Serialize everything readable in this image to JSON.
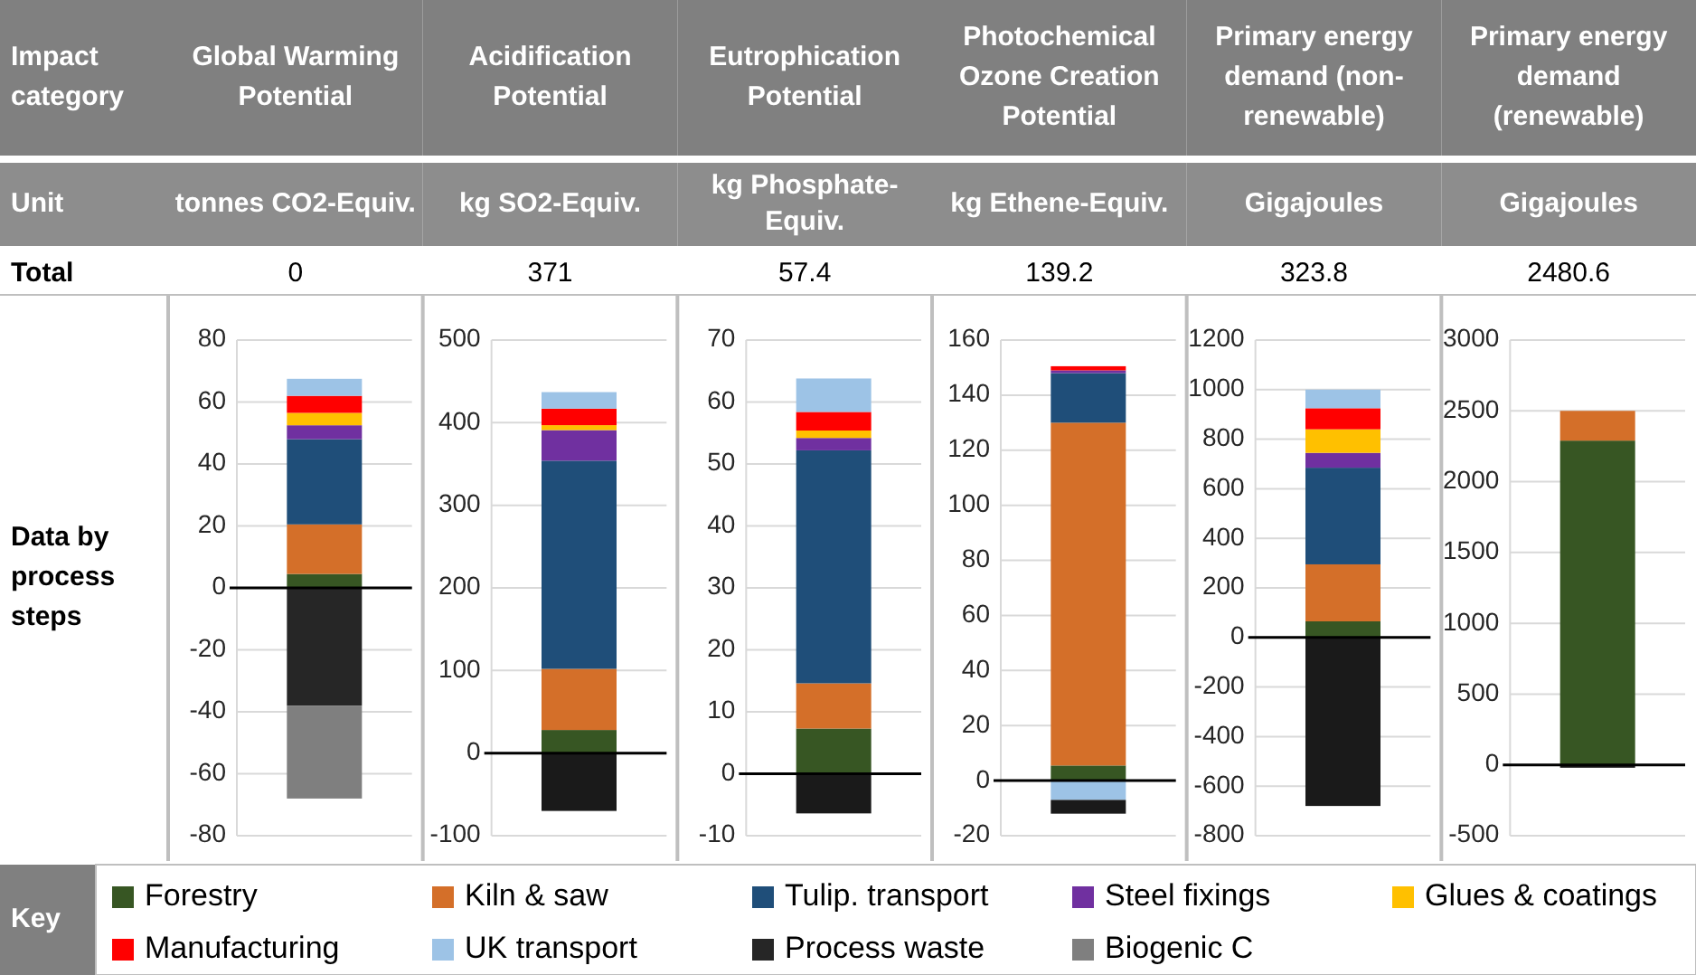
{
  "chart_data": [
    {
      "type": "other",
      "annotations": [
        "Impact category",
        "Unit",
        "Total",
        "Data by process steps",
        "Key"
      ]
    },
    {
      "type": "bar",
      "title": "Global Warming Potential",
      "subtitle": "tonnes CO2-Equiv.",
      "annotations": [
        "0"
      ],
      "stacked": true,
      "categories": [
        null
      ],
      "ylim": [
        -80,
        80
      ],
      "yticks": [
        -80,
        -60,
        -40,
        -20,
        0,
        20,
        40,
        60,
        80
      ],
      "grid": "y",
      "legend": "bottom",
      "series": [
        {
          "name": "Forestry",
          "color": "#375623",
          "values": [
            4.5
          ]
        },
        {
          "name": "Kiln & saw",
          "color": "#d46f29",
          "values": [
            16
          ]
        },
        {
          "name": "Tulip. transport",
          "color": "#1f4e79",
          "values": [
            27.5
          ]
        },
        {
          "name": "Steel fixings",
          "color": "#7030a0",
          "values": [
            4.5
          ]
        },
        {
          "name": "Glues & coatings",
          "color": "#ffc000",
          "values": [
            4
          ]
        },
        {
          "name": "Manufacturing",
          "color": "#ff0000",
          "values": [
            5.5
          ]
        },
        {
          "name": "UK transport",
          "color": "#9dc3e6",
          "values": [
            5.5
          ]
        },
        {
          "name": "Process waste",
          "color": "#262626",
          "values": [
            -38
          ]
        },
        {
          "name": "Biogenic C",
          "color": "#7f7f7f",
          "values": [
            -30
          ]
        }
      ]
    },
    {
      "type": "bar",
      "title": "Acidification Potential",
      "subtitle": "kg SO2-Equiv.",
      "annotations": [
        "371"
      ],
      "stacked": true,
      "categories": [
        null
      ],
      "ylim": [
        -100,
        500
      ],
      "yticks": [
        -100,
        0,
        100,
        200,
        300,
        400,
        500
      ],
      "grid": "y",
      "legend": "bottom",
      "series": [
        {
          "name": "Forestry",
          "color": "#375623",
          "values": [
            28
          ]
        },
        {
          "name": "Kiln & saw",
          "color": "#d46f29",
          "values": [
            74
          ]
        },
        {
          "name": "Tulip. transport",
          "color": "#1f4e79",
          "values": [
            252
          ]
        },
        {
          "name": "Steel fixings",
          "color": "#7030a0",
          "values": [
            37
          ]
        },
        {
          "name": "Glues & coatings",
          "color": "#ffc000",
          "values": [
            6
          ]
        },
        {
          "name": "Manufacturing",
          "color": "#ff0000",
          "values": [
            20
          ]
        },
        {
          "name": "UK transport",
          "color": "#9dc3e6",
          "values": [
            20
          ]
        },
        {
          "name": "Process waste",
          "color": "#1a1a1a",
          "values": [
            -70
          ]
        }
      ]
    },
    {
      "type": "bar",
      "title": "Eutrophication Potential",
      "subtitle": "kg Phosphate-Equiv.",
      "annotations": [
        "57.4"
      ],
      "stacked": true,
      "categories": [
        null
      ],
      "ylim": [
        -10,
        70
      ],
      "yticks": [
        -10,
        0,
        10,
        20,
        30,
        40,
        50,
        60,
        70
      ],
      "grid": "y",
      "legend": "bottom",
      "series": [
        {
          "name": "Forestry",
          "color": "#375623",
          "values": [
            7.3
          ]
        },
        {
          "name": "Kiln & saw",
          "color": "#d46f29",
          "values": [
            7.3
          ]
        },
        {
          "name": "Tulip. transport",
          "color": "#1f4e79",
          "values": [
            37.6
          ]
        },
        {
          "name": "Steel fixings",
          "color": "#7030a0",
          "values": [
            2
          ]
        },
        {
          "name": "Glues & coatings",
          "color": "#ffc000",
          "values": [
            1.2
          ]
        },
        {
          "name": "Manufacturing",
          "color": "#ff0000",
          "values": [
            3
          ]
        },
        {
          "name": "UK transport",
          "color": "#9dc3e6",
          "values": [
            5.4
          ]
        },
        {
          "name": "Process waste",
          "color": "#1a1a1a",
          "values": [
            -6.4
          ]
        }
      ]
    },
    {
      "type": "bar",
      "title": "Photochemical Ozone Creation Potential",
      "subtitle": "kg Ethene-Equiv.",
      "annotations": [
        "139.2"
      ],
      "stacked": true,
      "categories": [
        null
      ],
      "ylim": [
        -20,
        160
      ],
      "yticks": [
        -20,
        0,
        20,
        40,
        60,
        80,
        100,
        120,
        140,
        160
      ],
      "grid": "y",
      "legend": "bottom",
      "series": [
        {
          "name": "Forestry",
          "color": "#375623",
          "values": [
            5.5
          ]
        },
        {
          "name": "Kiln & saw",
          "color": "#d46f29",
          "values": [
            124.5
          ]
        },
        {
          "name": "Tulip. transport",
          "color": "#1f4e79",
          "values": [
            18
          ]
        },
        {
          "name": "Steel fixings",
          "color": "#7030a0",
          "values": [
            1
          ]
        },
        {
          "name": "Manufacturing",
          "color": "#ff0000",
          "values": [
            1.5
          ]
        },
        {
          "name": "UK transport",
          "color": "#9dc3e6",
          "values": [
            -7
          ]
        },
        {
          "name": "Process waste",
          "color": "#1a1a1a",
          "values": [
            -5
          ]
        }
      ]
    },
    {
      "type": "bar",
      "title": "Primary energy demand (non-renewable)",
      "subtitle": "Gigajoules",
      "annotations": [
        "323.8"
      ],
      "stacked": true,
      "categories": [
        null
      ],
      "ylim": [
        -800,
        1200
      ],
      "yticks": [
        -800,
        -600,
        -400,
        -200,
        0,
        200,
        400,
        600,
        800,
        1000,
        1200
      ],
      "grid": "y",
      "legend": "bottom",
      "series": [
        {
          "name": "Forestry",
          "color": "#375623",
          "values": [
            65
          ]
        },
        {
          "name": "Kiln & saw",
          "color": "#d46f29",
          "values": [
            230
          ]
        },
        {
          "name": "Tulip. transport",
          "color": "#1f4e79",
          "values": [
            390
          ]
        },
        {
          "name": "Steel fixings",
          "color": "#7030a0",
          "values": [
            60
          ]
        },
        {
          "name": "Glues & coatings",
          "color": "#ffc000",
          "values": [
            95
          ]
        },
        {
          "name": "Manufacturing",
          "color": "#ff0000",
          "values": [
            85
          ]
        },
        {
          "name": "UK transport",
          "color": "#9dc3e6",
          "values": [
            75
          ]
        },
        {
          "name": "Process waste",
          "color": "#1a1a1a",
          "values": [
            -680
          ]
        }
      ]
    },
    {
      "type": "bar",
      "title": "Primary energy demand (renewable)",
      "subtitle": "Gigajoules",
      "annotations": [
        "2480.6"
      ],
      "stacked": true,
      "categories": [
        null
      ],
      "ylim": [
        -500,
        3000
      ],
      "yticks": [
        -500,
        0,
        500,
        1000,
        1500,
        2000,
        2500,
        3000
      ],
      "grid": "y",
      "legend": "bottom",
      "series": [
        {
          "name": "Forestry",
          "color": "#375623",
          "values": [
            2290
          ]
        },
        {
          "name": "Kiln & saw",
          "color": "#d46f29",
          "values": [
            210
          ]
        },
        {
          "name": "Process waste",
          "color": "#1a1a1a",
          "values": [
            -20
          ]
        }
      ]
    }
  ]
}
